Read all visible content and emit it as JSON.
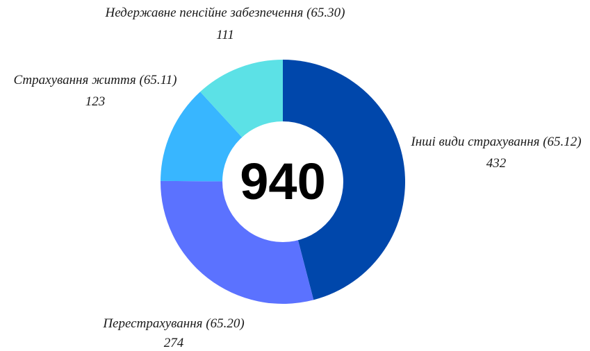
{
  "chart_data": {
    "type": "pie",
    "variant": "donut",
    "total": "940",
    "slices": [
      {
        "label": "Інші види страхування (65.12)",
        "value": 432,
        "value_text": "432",
        "color": "#0047ab"
      },
      {
        "label": "Перестрахування (65.20)",
        "value": 274,
        "value_text": "274",
        "color": "#5b72ff"
      },
      {
        "label": "Страхування життя (65.11)",
        "value": 123,
        "value_text": "123",
        "color": "#38b6ff"
      },
      {
        "label": "Недержавне пенсійне забезпечення (65.30)",
        "value": 111,
        "value_text": "111",
        "color": "#5ce1e6"
      }
    ],
    "start_angle": "top",
    "direction": "clockwise",
    "legend": "none"
  }
}
